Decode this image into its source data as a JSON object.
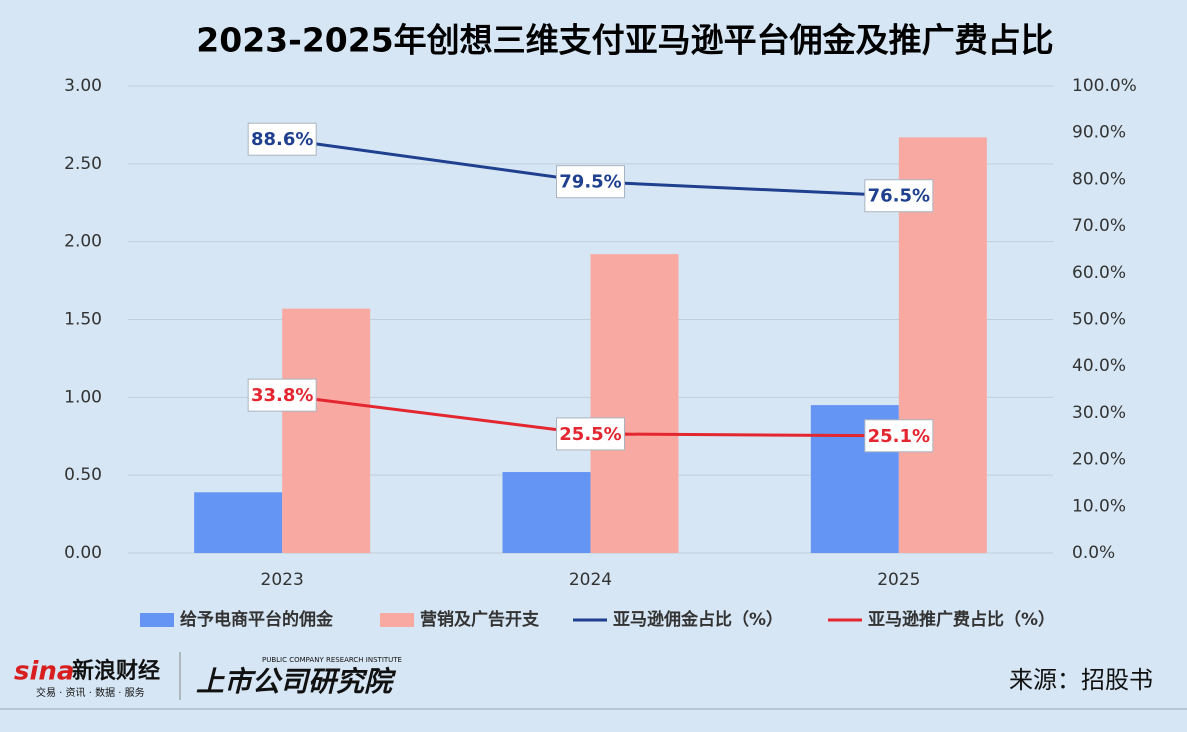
{
  "chart_data": {
    "type": "bar-line",
    "title": "2023-2025年创想三维支付亚马逊平台佣金及推广费占比",
    "categories": [
      "2023",
      "2024",
      "2025"
    ],
    "series": [
      {
        "name": "给予电商平台的佣金",
        "type": "bar",
        "axis": "y",
        "color": "#6495f5",
        "values": [
          0.39,
          0.52,
          0.95
        ]
      },
      {
        "name": "营销及广告开支",
        "type": "bar",
        "axis": "y",
        "color": "#f8aaa2",
        "values": [
          1.57,
          1.92,
          2.67
        ]
      },
      {
        "name": "亚马逊佣金占比（%）",
        "type": "line",
        "axis": "y2",
        "color": "#1f3f8f",
        "values": [
          88.6,
          79.5,
          76.5
        ],
        "value_labels": [
          "88.6%",
          "79.5%",
          "76.5%"
        ]
      },
      {
        "name": "亚马逊推广费占比（%）",
        "type": "line",
        "axis": "y2",
        "color": "#e3262f",
        "values": [
          33.8,
          25.5,
          25.1
        ],
        "value_labels": [
          "33.8%",
          "25.5%",
          "25.1%"
        ]
      }
    ],
    "ylim": [
      0,
      3
    ],
    "yticks": [
      {
        "value": 0,
        "label": "0.00"
      },
      {
        "value": 0.5,
        "label": "0.50"
      },
      {
        "value": 1,
        "label": "1.00"
      },
      {
        "value": 1.5,
        "label": "1.50"
      },
      {
        "value": 2,
        "label": "2.00"
      },
      {
        "value": 2.5,
        "label": "2.50"
      },
      {
        "value": 3,
        "label": "3.00"
      }
    ],
    "y2lim": [
      0,
      100
    ],
    "y2ticks": [
      {
        "value": 0,
        "label": "0.0%"
      },
      {
        "value": 10,
        "label": "10.0%"
      },
      {
        "value": 20,
        "label": "20.0%"
      },
      {
        "value": 30,
        "label": "30.0%"
      },
      {
        "value": 40,
        "label": "40.0%"
      },
      {
        "value": 50,
        "label": "50.0%"
      },
      {
        "value": 60,
        "label": "60.0%"
      },
      {
        "value": 70,
        "label": "70.0%"
      },
      {
        "value": 80,
        "label": "80.0%"
      },
      {
        "value": 90,
        "label": "90.0%"
      },
      {
        "value": 100,
        "label": "100.0%"
      }
    ],
    "grid": true,
    "legend": "bottom",
    "source": "来源：招股书"
  },
  "branding": {
    "logo": "新浪财经",
    "logo_mark": "sina",
    "logo_tagline": "交易 · 资讯 · 数据 · 服务",
    "institute": "上市公司研究院",
    "institute_tagline": "PUBLIC COMPANY RESEARCH INSTITUTE"
  }
}
